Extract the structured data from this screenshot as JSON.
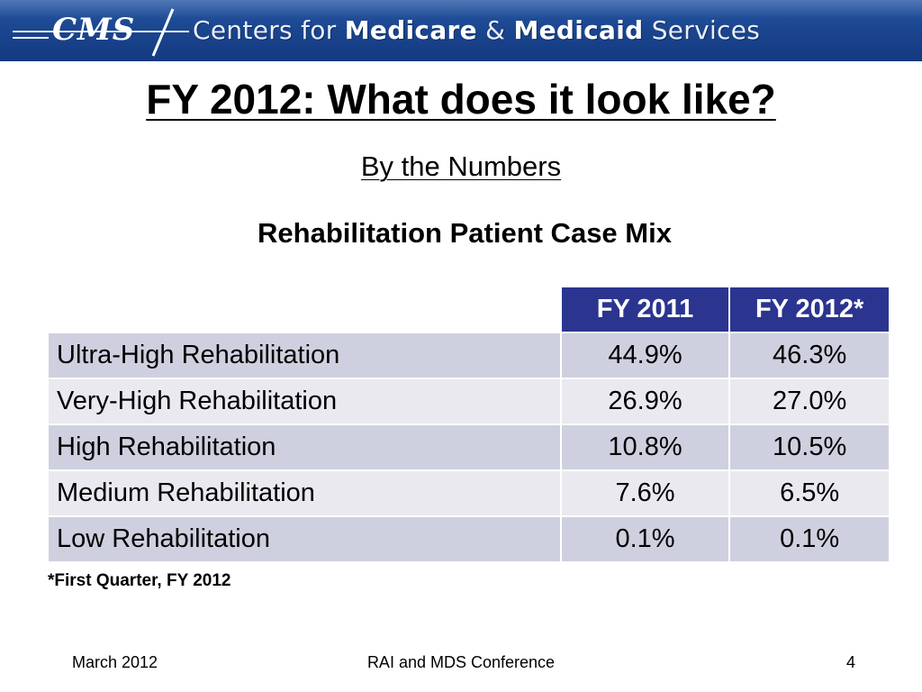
{
  "banner": {
    "logo_text": "CMS",
    "text_pre": "Centers for ",
    "text_bold1": "Medicare",
    "text_mid": " & ",
    "text_bold2": "Medicaid",
    "text_post": " Services"
  },
  "slide": {
    "title": "FY 2012: What does it look like?",
    "subtitle": "By the Numbers",
    "heading": "Rehabilitation Patient Case Mix"
  },
  "table": {
    "headers": [
      "",
      "FY 2011",
      "FY 2012*"
    ],
    "rows": [
      [
        "Ultra-High Rehabilitation",
        "44.9%",
        "46.3%"
      ],
      [
        "Very-High Rehabilitation",
        "26.9%",
        "27.0%"
      ],
      [
        "High Rehabilitation",
        "10.8%",
        "10.5%"
      ],
      [
        "Medium Rehabilitation",
        "7.6%",
        "6.5%"
      ],
      [
        "Low Rehabilitation",
        "0.1%",
        "0.1%"
      ]
    ]
  },
  "footnote": "*First Quarter, FY 2012",
  "footer": {
    "left": "March 2012",
    "center": "RAI and MDS Conference",
    "right": "4"
  },
  "colors": {
    "banner": "#1b4690",
    "header_cell": "#2b3590",
    "row_dark": "#cfd0df",
    "row_light": "#e9e9ef"
  }
}
